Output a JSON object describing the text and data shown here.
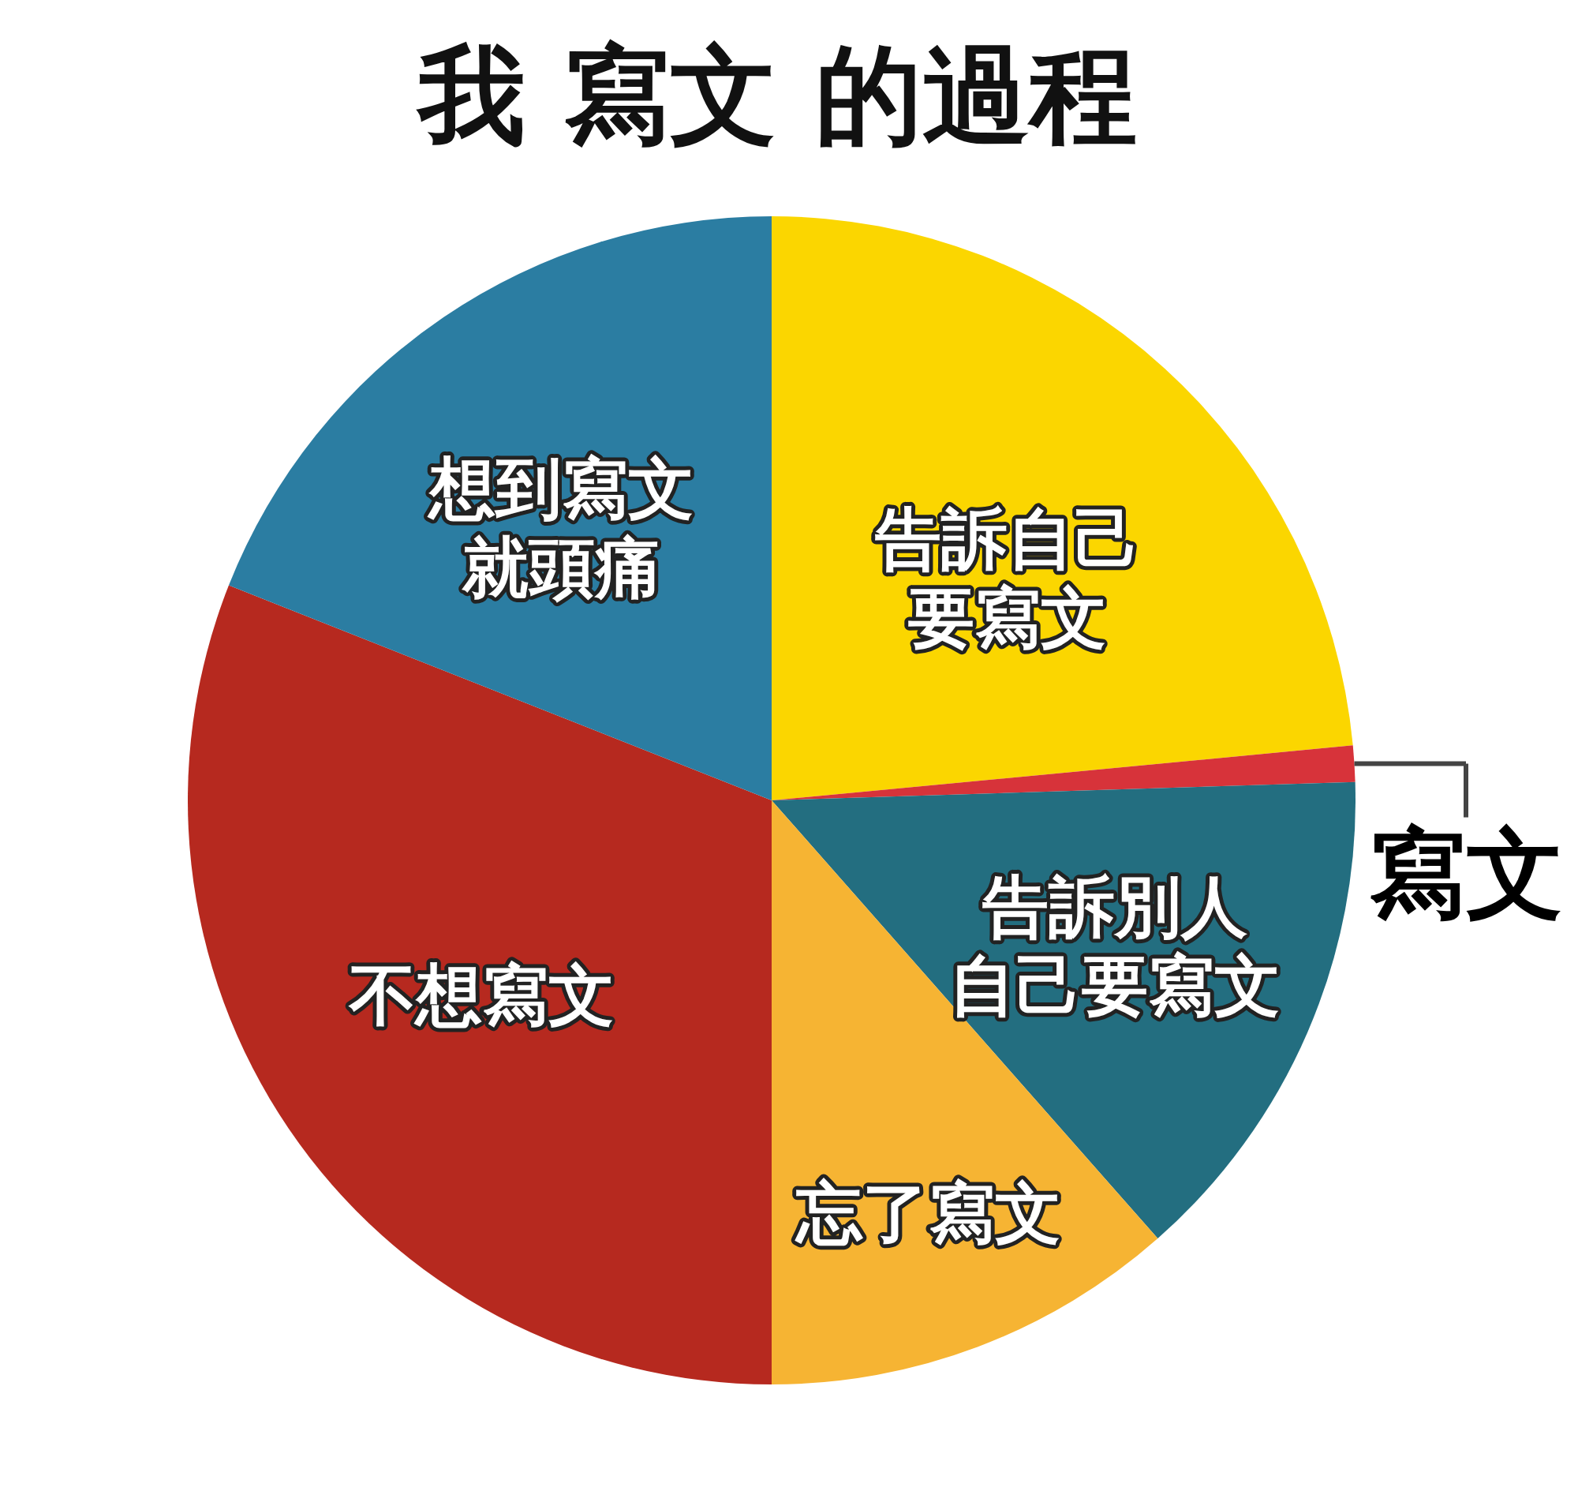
{
  "chart_data": {
    "type": "pie",
    "title": "我 寫文 的過程",
    "categories": [
      "告訴自己要寫文",
      "寫文",
      "告訴別人自己要寫文",
      "忘了寫文",
      "不想寫文",
      "想到寫文就頭痛"
    ],
    "values": [
      23.5,
      1,
      14,
      11.5,
      31,
      19
    ],
    "colors": [
      "#fbd600",
      "#d7333a",
      "#236e80",
      "#f6b433",
      "#b6291f",
      "#2b7da2"
    ]
  }
}
